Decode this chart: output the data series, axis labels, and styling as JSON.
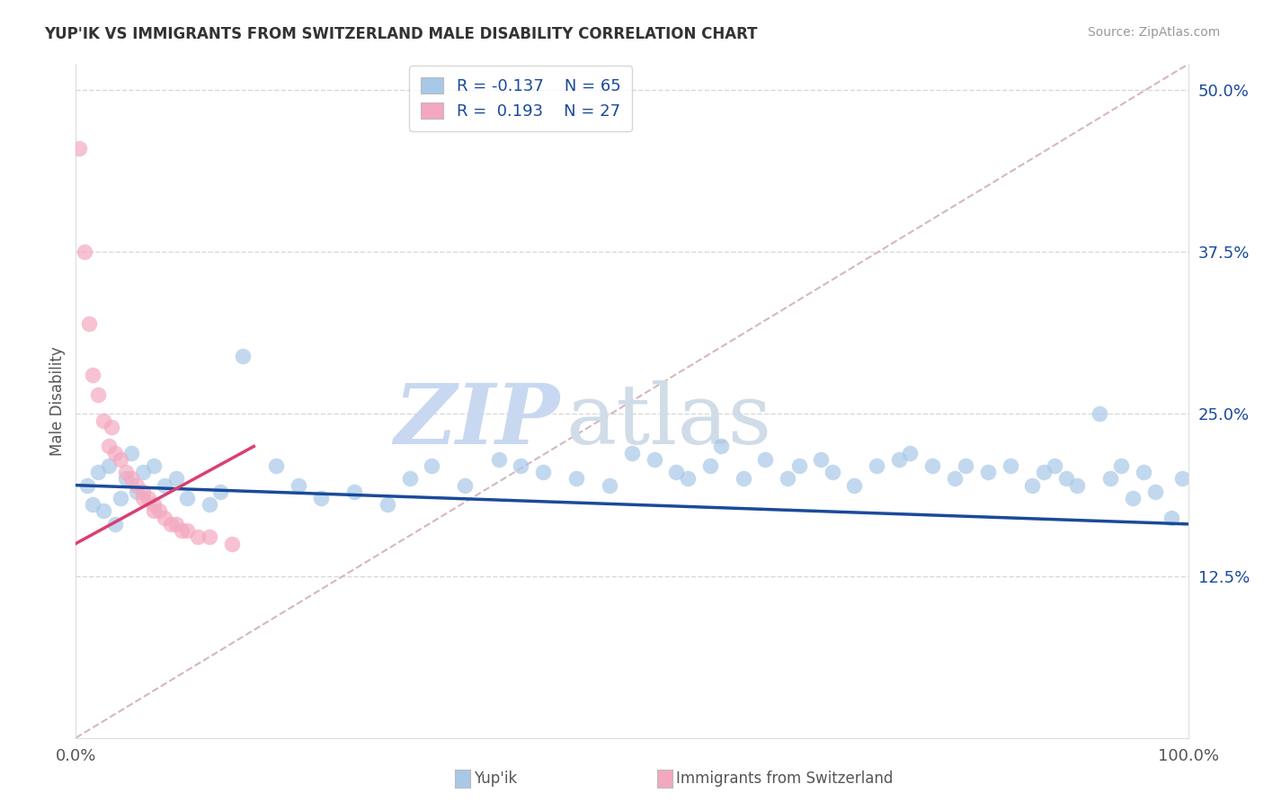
{
  "title": "YUP'IK VS IMMIGRANTS FROM SWITZERLAND MALE DISABILITY CORRELATION CHART",
  "source": "Source: ZipAtlas.com",
  "ylabel": "Male Disability",
  "watermark_zip": "ZIP",
  "watermark_atlas": "atlas",
  "xlim": [
    0,
    100
  ],
  "ylim": [
    0,
    52
  ],
  "right_ytick_vals": [
    12.5,
    25.0,
    37.5,
    50.0
  ],
  "right_yticklabels": [
    "12.5%",
    "25.0%",
    "37.5%",
    "50.0%"
  ],
  "blue_color": "#a8c8e8",
  "pink_color": "#f4a8c0",
  "blue_line_color": "#1a4a9a",
  "pink_line_color": "#d84070",
  "diag_color": "#d0b0b8",
  "grid_color": "#d8d8d8",
  "tick_label_color": "#555555",
  "right_tick_color": "#1a4a9a",
  "legend_text_color": "#1a4a9a",
  "title_color": "#333333",
  "source_color": "#999999",
  "blue_pts": [
    [
      1.0,
      19.5
    ],
    [
      1.5,
      18.0
    ],
    [
      2.0,
      20.5
    ],
    [
      2.5,
      17.5
    ],
    [
      3.0,
      21.0
    ],
    [
      3.5,
      16.5
    ],
    [
      4.0,
      18.5
    ],
    [
      4.5,
      20.0
    ],
    [
      5.0,
      22.0
    ],
    [
      5.5,
      19.0
    ],
    [
      6.0,
      20.5
    ],
    [
      7.0,
      21.0
    ],
    [
      8.0,
      19.5
    ],
    [
      9.0,
      20.0
    ],
    [
      10.0,
      18.5
    ],
    [
      12.0,
      18.0
    ],
    [
      13.0,
      19.0
    ],
    [
      15.0,
      29.5
    ],
    [
      18.0,
      21.0
    ],
    [
      20.0,
      19.5
    ],
    [
      22.0,
      18.5
    ],
    [
      25.0,
      19.0
    ],
    [
      28.0,
      18.0
    ],
    [
      30.0,
      20.0
    ],
    [
      32.0,
      21.0
    ],
    [
      35.0,
      19.5
    ],
    [
      38.0,
      21.5
    ],
    [
      40.0,
      21.0
    ],
    [
      42.0,
      20.5
    ],
    [
      45.0,
      20.0
    ],
    [
      48.0,
      19.5
    ],
    [
      50.0,
      22.0
    ],
    [
      52.0,
      21.5
    ],
    [
      54.0,
      20.5
    ],
    [
      55.0,
      20.0
    ],
    [
      57.0,
      21.0
    ],
    [
      58.0,
      22.5
    ],
    [
      60.0,
      20.0
    ],
    [
      62.0,
      21.5
    ],
    [
      64.0,
      20.0
    ],
    [
      65.0,
      21.0
    ],
    [
      67.0,
      21.5
    ],
    [
      68.0,
      20.5
    ],
    [
      70.0,
      19.5
    ],
    [
      72.0,
      21.0
    ],
    [
      74.0,
      21.5
    ],
    [
      75.0,
      22.0
    ],
    [
      77.0,
      21.0
    ],
    [
      79.0,
      20.0
    ],
    [
      80.0,
      21.0
    ],
    [
      82.0,
      20.5
    ],
    [
      84.0,
      21.0
    ],
    [
      86.0,
      19.5
    ],
    [
      87.0,
      20.5
    ],
    [
      88.0,
      21.0
    ],
    [
      89.0,
      20.0
    ],
    [
      90.0,
      19.5
    ],
    [
      92.0,
      25.0
    ],
    [
      93.0,
      20.0
    ],
    [
      94.0,
      21.0
    ],
    [
      95.0,
      18.5
    ],
    [
      96.0,
      20.5
    ],
    [
      97.0,
      19.0
    ],
    [
      98.5,
      17.0
    ],
    [
      99.5,
      20.0
    ]
  ],
  "pink_pts": [
    [
      0.3,
      45.5
    ],
    [
      0.8,
      37.5
    ],
    [
      1.2,
      32.0
    ],
    [
      1.5,
      28.0
    ],
    [
      2.0,
      26.5
    ],
    [
      2.5,
      24.5
    ],
    [
      3.0,
      22.5
    ],
    [
      3.2,
      24.0
    ],
    [
      3.5,
      22.0
    ],
    [
      4.0,
      21.5
    ],
    [
      4.5,
      20.5
    ],
    [
      5.0,
      20.0
    ],
    [
      5.5,
      19.5
    ],
    [
      6.0,
      19.0
    ],
    [
      6.0,
      18.5
    ],
    [
      6.5,
      18.5
    ],
    [
      7.0,
      18.0
    ],
    [
      7.0,
      17.5
    ],
    [
      7.5,
      17.5
    ],
    [
      8.0,
      17.0
    ],
    [
      8.5,
      16.5
    ],
    [
      9.0,
      16.5
    ],
    [
      9.5,
      16.0
    ],
    [
      10.0,
      16.0
    ],
    [
      11.0,
      15.5
    ],
    [
      12.0,
      15.5
    ],
    [
      14.0,
      15.0
    ]
  ]
}
